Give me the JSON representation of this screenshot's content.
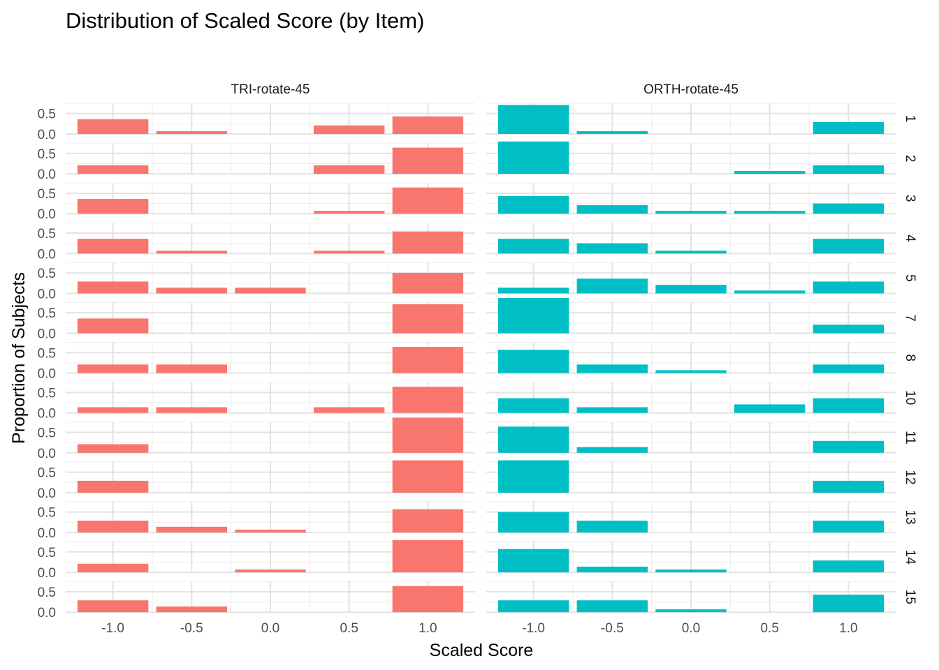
{
  "chart_data": {
    "type": "bar",
    "title": "Distribution of Scaled Score (by Item)",
    "xlabel": "Scaled Score",
    "ylabel": "Proportion of Subjects",
    "x": [
      -1.0,
      -0.5,
      0.0,
      0.5,
      1.0
    ],
    "x_tick_labels": [
      "-1.0",
      "-0.5",
      "0.0",
      "0.5",
      "1.0"
    ],
    "y_tick_labels": [
      "0.0",
      "0.5"
    ],
    "xlim": [
      -1.3,
      1.3
    ],
    "ylim": [
      0,
      0.75
    ],
    "facet_cols": [
      {
        "label": "TRI-rotate-45",
        "color": "#F8766D"
      },
      {
        "label": "ORTH-rotate-45",
        "color": "#00BFC4"
      }
    ],
    "facet_rows": [
      "1",
      "2",
      "3",
      "4",
      "5",
      "7",
      "8",
      "10",
      "11",
      "12",
      "13",
      "14",
      "15"
    ],
    "values": [
      [
        [
          0.36,
          0.07,
          0.0,
          0.21,
          0.43
        ],
        [
          0.71,
          0.07,
          0.0,
          0.0,
          0.29
        ]
      ],
      [
        [
          0.21,
          0.0,
          0.0,
          0.21,
          0.64
        ],
        [
          0.79,
          0.0,
          0.0,
          0.07,
          0.21
        ]
      ],
      [
        [
          0.36,
          0.0,
          0.0,
          0.07,
          0.64
        ],
        [
          0.43,
          0.21,
          0.07,
          0.07,
          0.25
        ]
      ],
      [
        [
          0.36,
          0.07,
          0.0,
          0.07,
          0.54
        ],
        [
          0.36,
          0.25,
          0.07,
          0.0,
          0.36
        ]
      ],
      [
        [
          0.29,
          0.14,
          0.14,
          0.0,
          0.5
        ],
        [
          0.14,
          0.36,
          0.21,
          0.07,
          0.29
        ]
      ],
      [
        [
          0.36,
          0.0,
          0.0,
          0.0,
          0.71
        ],
        [
          0.86,
          0.0,
          0.0,
          0.0,
          0.21
        ]
      ],
      [
        [
          0.21,
          0.21,
          0.0,
          0.0,
          0.64
        ],
        [
          0.57,
          0.21,
          0.07,
          0.0,
          0.21
        ]
      ],
      [
        [
          0.14,
          0.14,
          0.0,
          0.14,
          0.64
        ],
        [
          0.36,
          0.14,
          0.0,
          0.21,
          0.36
        ]
      ],
      [
        [
          0.21,
          0.0,
          0.0,
          0.0,
          0.86
        ],
        [
          0.64,
          0.14,
          0.0,
          0.0,
          0.29
        ]
      ],
      [
        [
          0.29,
          0.0,
          0.0,
          0.0,
          0.79
        ],
        [
          0.79,
          0.0,
          0.0,
          0.0,
          0.29
        ]
      ],
      [
        [
          0.29,
          0.14,
          0.07,
          0.0,
          0.57
        ],
        [
          0.5,
          0.29,
          0.0,
          0.0,
          0.29
        ]
      ],
      [
        [
          0.21,
          0.0,
          0.07,
          0.0,
          0.79
        ],
        [
          0.57,
          0.14,
          0.07,
          0.0,
          0.29
        ]
      ],
      [
        [
          0.29,
          0.14,
          0.0,
          0.0,
          0.64
        ],
        [
          0.29,
          0.29,
          0.07,
          0.0,
          0.43
        ]
      ]
    ],
    "grid": true,
    "legend": "none"
  }
}
